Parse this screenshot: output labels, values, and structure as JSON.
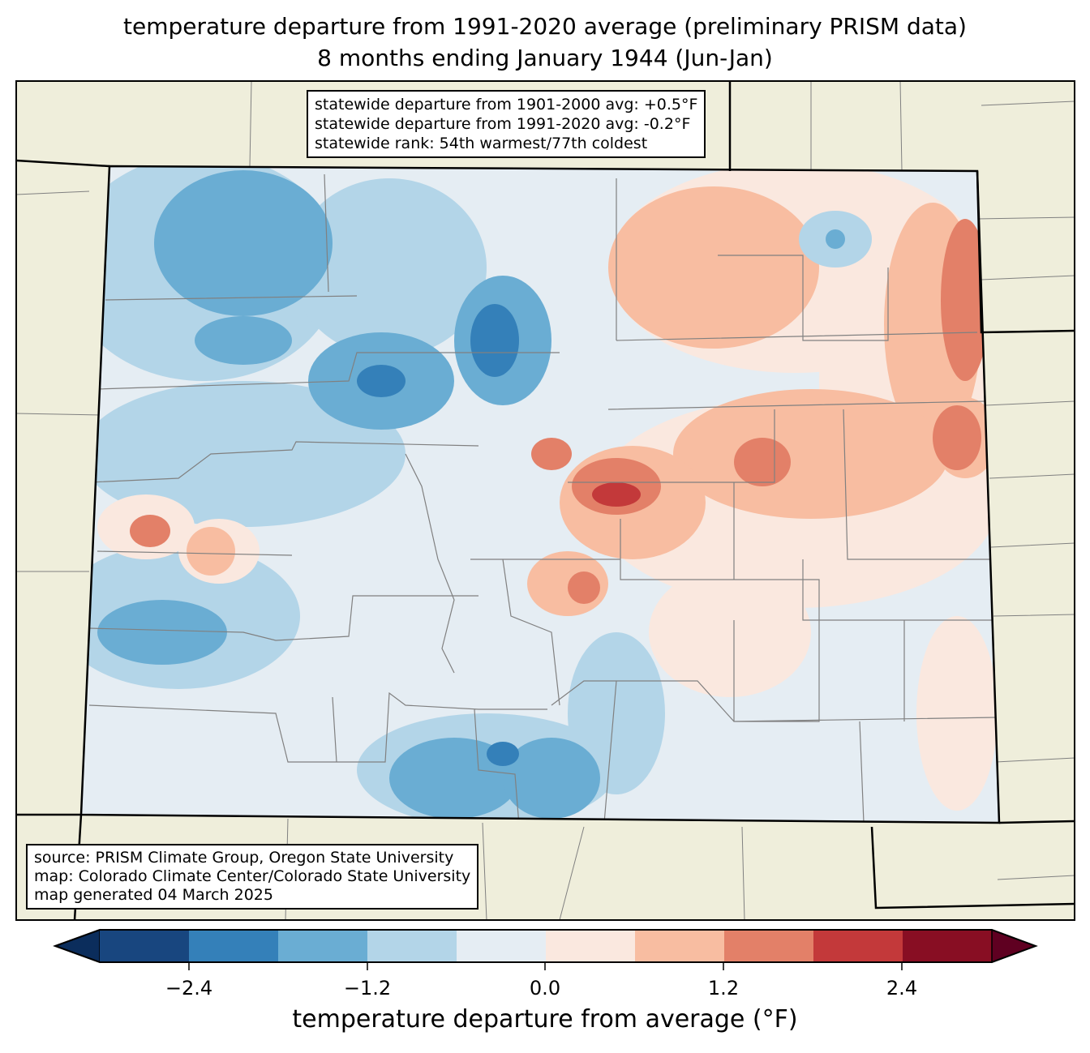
{
  "title": {
    "line1": "temperature departure from 1991-2020 average (preliminary PRISM data)",
    "line2": "8 months ending January 1944 (Jun-Jan)"
  },
  "stats": {
    "line1": "statewide departure from 1901-2000 avg: +0.5°F",
    "line2": "statewide departure from 1991-2020 avg: -0.2°F",
    "line3": "statewide rank: 54th warmest/77th coldest"
  },
  "source": {
    "line1": "source: PRISM Climate Group, Oregon State University",
    "line2": "map: Colorado Climate Center/Colorado State University",
    "line3": "map generated 04 March 2025"
  },
  "colorbar": {
    "label": "temperature departure from average (°F)",
    "ticks": [
      "−2.4",
      "−1.2",
      "0.0",
      "1.2",
      "2.4"
    ],
    "bounds": [
      -3.0,
      -2.4,
      -1.8,
      -1.2,
      -0.6,
      0.0,
      0.6,
      1.2,
      1.8,
      2.4,
      3.0
    ],
    "colors": [
      "#18467f",
      "#3480b9",
      "#6aadd3",
      "#b3d5e8",
      "#e5edf3",
      "#fae8df",
      "#f8bda1",
      "#e38068",
      "#c3393a",
      "#880e23"
    ],
    "under_color": "#0b2d5c",
    "over_color": "#5f0021"
  },
  "map_colors": {
    "land": "#efeedb",
    "border": "#000000",
    "county": "#808080"
  }
}
